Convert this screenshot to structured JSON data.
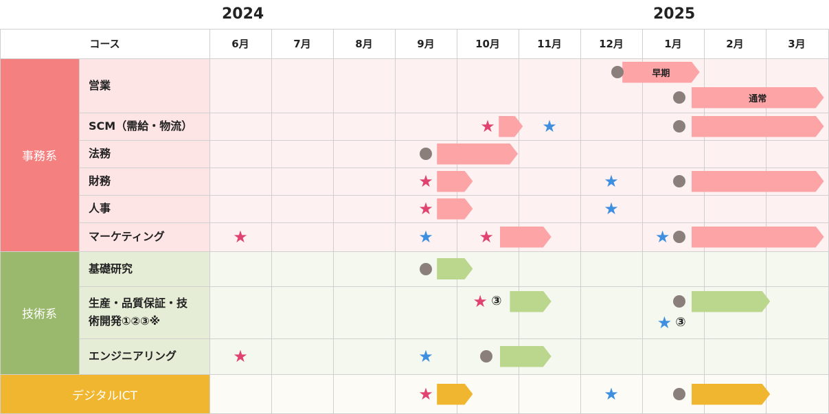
{
  "years": [
    "2024",
    "2025"
  ],
  "header": {
    "course_label": "コース",
    "months": [
      "6月",
      "7月",
      "8月",
      "9月",
      "10月",
      "11月",
      "12月",
      "1月",
      "2月",
      "3月"
    ]
  },
  "categories": [
    {
      "label": "事務系",
      "color": "#f58080",
      "bg": "#fde4e5"
    },
    {
      "label": "技術系",
      "color": "#9bb96c",
      "bg": "#e5edd6"
    },
    {
      "label": "デジタルICT",
      "color": "#f0b62f",
      "bg": "#fdfbf6"
    }
  ],
  "colors": {
    "arrow_jimu": "#fca4a6",
    "arrow_gijutsu": "#bbd68d",
    "arrow_digital": "#f0b62f",
    "star_pink": "#e0436f",
    "star_blue": "#3f8fe0",
    "dot": "#8a7f7b"
  },
  "courses": [
    {
      "label": "営業"
    },
    {
      "label": "SCM（需給・物流）"
    },
    {
      "label": "法務"
    },
    {
      "label": "財務"
    },
    {
      "label": "人事"
    },
    {
      "label": "マーケティング"
    },
    {
      "label": "基礎研究"
    },
    {
      "label": "生産・品質保証・技術開発①②③※"
    },
    {
      "label": "エンジニアリング"
    }
  ],
  "digital_label": "デジタルICT",
  "bar_labels": {
    "early": "早期",
    "regular": "通常"
  },
  "notes": {
    "circle3": "③"
  },
  "marks": [
    {
      "type": "dot",
      "month": 6.6,
      "row": 0,
      "sub": 0
    },
    {
      "type": "dot",
      "month": 7.6,
      "row": 0,
      "sub": 1
    },
    {
      "type": "star",
      "color": "pink",
      "month": 4.5,
      "row": 1
    },
    {
      "type": "star",
      "color": "blue",
      "month": 5.5,
      "row": 1
    },
    {
      "type": "dot",
      "month": 7.6,
      "row": 1
    },
    {
      "type": "dot",
      "month": 3.5,
      "row": 2
    },
    {
      "type": "star",
      "color": "pink",
      "month": 3.5,
      "row": 3
    },
    {
      "type": "star",
      "color": "blue",
      "month": 6.5,
      "row": 3
    },
    {
      "type": "dot",
      "month": 7.6,
      "row": 3
    },
    {
      "type": "star",
      "color": "pink",
      "month": 3.5,
      "row": 4
    },
    {
      "type": "star",
      "color": "blue",
      "month": 6.5,
      "row": 4
    },
    {
      "type": "star",
      "color": "pink",
      "month": 0.5,
      "row": 5
    },
    {
      "type": "star",
      "color": "blue",
      "month": 3.5,
      "row": 5
    },
    {
      "type": "star",
      "color": "pink",
      "month": 4.48,
      "row": 5
    },
    {
      "type": "star",
      "color": "blue",
      "month": 7.33,
      "row": 5
    },
    {
      "type": "dot",
      "month": 7.6,
      "row": 5
    },
    {
      "type": "dot",
      "month": 3.5,
      "row": 6
    },
    {
      "type": "star",
      "color": "pink",
      "month": 4.38,
      "row": 7,
      "sub": 0
    },
    {
      "type": "dot",
      "month": 7.6,
      "row": 7,
      "sub": 0
    },
    {
      "type": "star",
      "color": "blue",
      "month": 7.36,
      "row": 7,
      "sub": 1
    },
    {
      "type": "star",
      "color": "pink",
      "month": 0.5,
      "row": 8
    },
    {
      "type": "star",
      "color": "blue",
      "month": 3.5,
      "row": 8
    },
    {
      "type": "dot",
      "month": 4.48,
      "row": 8
    },
    {
      "type": "star",
      "color": "pink",
      "month": 3.5,
      "row": 9
    },
    {
      "type": "star",
      "color": "blue",
      "month": 6.5,
      "row": 9
    },
    {
      "type": "dot",
      "month": 7.6,
      "row": 9
    }
  ],
  "bars": [
    {
      "row": 0,
      "sub": 0,
      "start": 6.68,
      "end": 7.93,
      "style": "jimu",
      "label_key": "early"
    },
    {
      "row": 0,
      "sub": 1,
      "start": 7.8,
      "end": 9.94,
      "style": "jimu",
      "label_key": "regular"
    },
    {
      "row": 1,
      "start": 4.68,
      "end": 5.07,
      "style": "jimu"
    },
    {
      "row": 1,
      "start": 7.8,
      "end": 9.94,
      "style": "jimu"
    },
    {
      "row": 2,
      "start": 3.68,
      "end": 4.99,
      "style": "jimu"
    },
    {
      "row": 3,
      "start": 3.68,
      "end": 4.26,
      "style": "jimu"
    },
    {
      "row": 3,
      "start": 7.8,
      "end": 9.94,
      "style": "jimu"
    },
    {
      "row": 4,
      "start": 3.68,
      "end": 4.26,
      "style": "jimu"
    },
    {
      "row": 5,
      "start": 4.7,
      "end": 5.53,
      "style": "jimu"
    },
    {
      "row": 5,
      "start": 7.8,
      "end": 9.94,
      "style": "jimu"
    },
    {
      "row": 6,
      "start": 3.68,
      "end": 4.26,
      "style": "gijutsu"
    },
    {
      "row": 7,
      "sub": 0,
      "start": 4.86,
      "end": 5.53,
      "style": "gijutsu"
    },
    {
      "row": 7,
      "sub": 0,
      "start": 7.8,
      "end": 9.07,
      "style": "gijutsu"
    },
    {
      "row": 8,
      "start": 4.7,
      "end": 5.53,
      "style": "gijutsu"
    },
    {
      "row": 9,
      "start": 3.68,
      "end": 4.26,
      "style": "digital"
    },
    {
      "row": 9,
      "start": 7.8,
      "end": 9.07,
      "style": "digital"
    }
  ]
}
